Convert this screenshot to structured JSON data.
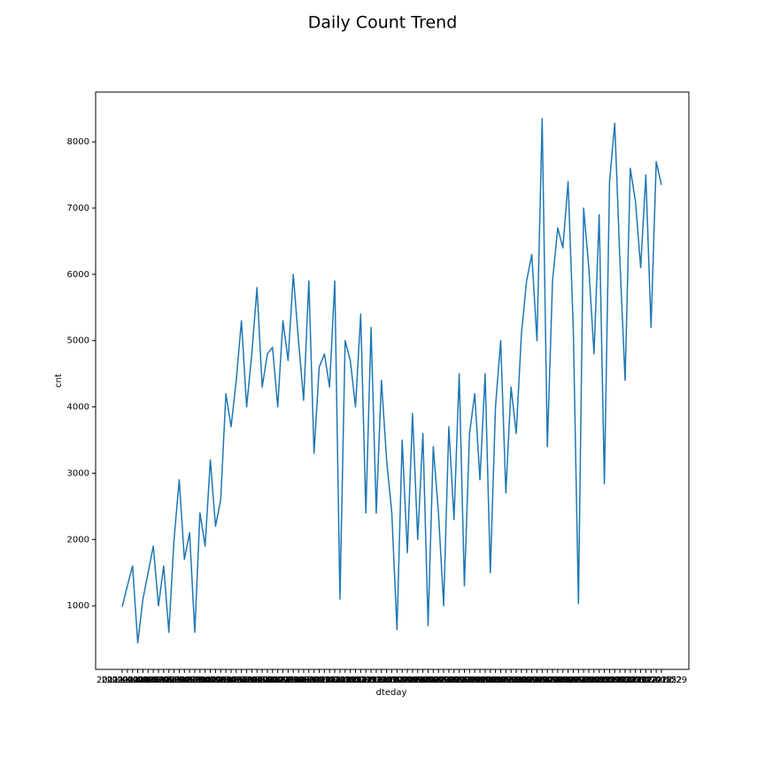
{
  "chart_data": {
    "type": "line",
    "title": "Daily Count Trend",
    "x_label": "dteday",
    "y_label": "cnt",
    "categories": [
      "2011-01-01",
      "2011-01-08",
      "2011-01-15",
      "2011-01-22",
      "2011-01-29",
      "2011-02-05",
      "2011-02-12",
      "2011-02-19",
      "2011-02-26",
      "2011-03-05",
      "2011-03-12",
      "2011-03-19",
      "2011-03-26",
      "2011-04-02",
      "2011-04-09",
      "2011-04-16",
      "2011-04-23",
      "2011-04-30",
      "2011-05-07",
      "2011-05-14",
      "2011-05-21",
      "2011-05-28",
      "2011-06-04",
      "2011-06-11",
      "2011-06-18",
      "2011-06-25",
      "2011-07-02",
      "2011-07-09",
      "2011-07-16",
      "2011-07-23",
      "2011-07-30",
      "2011-08-06",
      "2011-08-13",
      "2011-08-20",
      "2011-08-27",
      "2011-09-03",
      "2011-09-10",
      "2011-09-17",
      "2011-09-24",
      "2011-10-01",
      "2011-10-08",
      "2011-10-15",
      "2011-10-22",
      "2011-10-29",
      "2011-11-05",
      "2011-11-12",
      "2011-11-19",
      "2011-11-26",
      "2011-12-03",
      "2011-12-10",
      "2011-12-17",
      "2011-12-24",
      "2011-12-31",
      "2012-01-07",
      "2012-01-14",
      "2012-01-21",
      "2012-01-28",
      "2012-02-04",
      "2012-02-11",
      "2012-02-18",
      "2012-02-25",
      "2012-03-03",
      "2012-03-10",
      "2012-03-17",
      "2012-03-24",
      "2012-03-31",
      "2012-04-07",
      "2012-04-14",
      "2012-04-21",
      "2012-04-28",
      "2012-05-05",
      "2012-05-12",
      "2012-05-19",
      "2012-05-26",
      "2012-06-02",
      "2012-06-09",
      "2012-06-16",
      "2012-06-23",
      "2012-06-30",
      "2012-07-07",
      "2012-07-14",
      "2012-07-21",
      "2012-07-28",
      "2012-08-04",
      "2012-08-11",
      "2012-08-18",
      "2012-08-25",
      "2012-09-01",
      "2012-09-08",
      "2012-09-15",
      "2012-09-22",
      "2012-09-29",
      "2012-10-06",
      "2012-10-13",
      "2012-10-20",
      "2012-10-27",
      "2012-11-03",
      "2012-11-10",
      "2012-11-17",
      "2012-11-24",
      "2012-12-01",
      "2012-12-08",
      "2012-12-15",
      "2012-12-22",
      "2012-12-29"
    ],
    "series": [
      {
        "name": "cnt",
        "color": "#1f77b4",
        "values": [
          985,
          1300,
          1600,
          440,
          1100,
          1500,
          1900,
          1000,
          1600,
          600,
          2000,
          2900,
          1700,
          2100,
          600,
          2400,
          1900,
          3200,
          2200,
          2600,
          4200,
          3700,
          4400,
          5300,
          4000,
          4800,
          5800,
          4300,
          4800,
          4900,
          4000,
          5300,
          4700,
          6000,
          5000,
          4100,
          5900,
          3300,
          4600,
          4800,
          4300,
          5900,
          1100,
          5000,
          4700,
          4000,
          5400,
          2400,
          5200,
          2400,
          4400,
          3200,
          2400,
          640,
          3500,
          1800,
          3900,
          2000,
          3600,
          700,
          3400,
          2400,
          1000,
          3700,
          2300,
          4500,
          1300,
          3600,
          4200,
          2900,
          4500,
          1500,
          4000,
          5000,
          2700,
          4300,
          3600,
          5100,
          5900,
          6300,
          5000,
          8350,
          3400,
          5900,
          6700,
          6400,
          7400,
          5200,
          1030,
          7000,
          6100,
          4800,
          6900,
          2840,
          7400,
          8280,
          6200,
          4400,
          7600,
          7100,
          6100,
          7500,
          5200,
          7700,
          7350
        ]
      }
    ],
    "ylim": [
      40,
      8750
    ],
    "yticks": [
      1000,
      2000,
      3000,
      4000,
      5000,
      6000,
      7000,
      8000
    ]
  }
}
